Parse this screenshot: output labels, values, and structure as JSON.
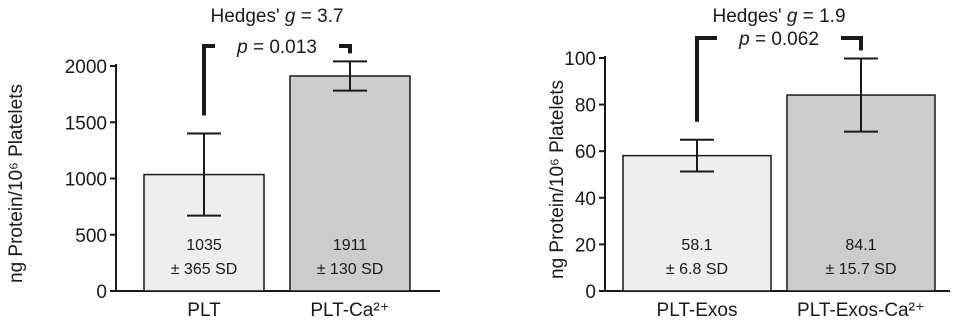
{
  "chart_data": [
    {
      "type": "bar",
      "categories": [
        "PLT",
        "PLT-Ca²⁺"
      ],
      "values": [
        1035,
        1911
      ],
      "errors": [
        365,
        130
      ],
      "data_labels": [
        {
          "value": "1035",
          "sd": "± 365 SD"
        },
        {
          "value": "1911",
          "sd": "± 130 SD"
        }
      ],
      "bar_colors": [
        "#eeeeee",
        "#cccccc"
      ],
      "ylabel": "ng Protein/10⁶ Platelets",
      "ylim": [
        0,
        2000
      ],
      "yticks": [
        0,
        500,
        1000,
        1500,
        2000
      ],
      "grid": false,
      "annotations": {
        "effect_size": "Hedges' g = 3.7",
        "p_value": "p = 0.013"
      }
    },
    {
      "type": "bar",
      "categories": [
        "PLT-Exos",
        "PLT-Exos-Ca²⁺"
      ],
      "values": [
        58.1,
        84.1
      ],
      "errors": [
        6.8,
        15.7
      ],
      "data_labels": [
        {
          "value": "58.1",
          "sd": "± 6.8 SD"
        },
        {
          "value": "84.1",
          "sd": "± 15.7 SD"
        }
      ],
      "bar_colors": [
        "#eeeeee",
        "#cccccc"
      ],
      "ylabel": "ng Protein/10⁶ Platelets",
      "ylim": [
        0,
        100
      ],
      "yticks": [
        0,
        20,
        40,
        60,
        80,
        100
      ],
      "grid": false,
      "annotations": {
        "effect_size": "Hedges' g = 1.9",
        "p_value": "p = 0.062"
      }
    }
  ]
}
